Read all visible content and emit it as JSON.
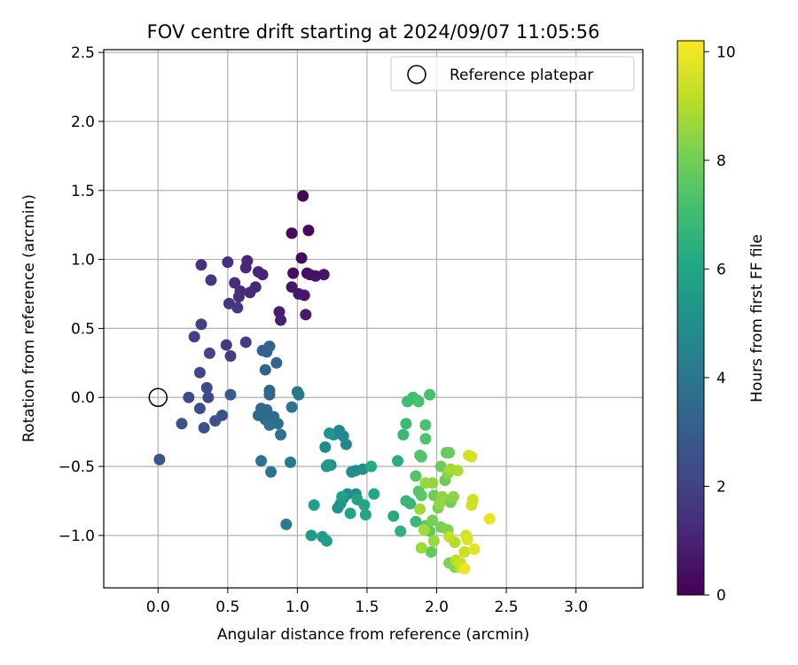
{
  "chart_data": {
    "type": "scatter",
    "title": "FOV centre drift starting at 2024/09/07 11:05:56",
    "xlabel": "Angular distance from reference (arcmin)",
    "ylabel": "Rotation from reference (arcmin)",
    "xlim": [
      -0.39,
      3.48
    ],
    "ylim": [
      -1.38,
      2.52
    ],
    "xticks": [
      "0.0",
      "0.5",
      "1.0",
      "1.5",
      "2.0",
      "2.5",
      "3.0"
    ],
    "yticks": [
      "−1.0",
      "−0.5",
      "0.0",
      "0.5",
      "1.0",
      "1.5",
      "2.0",
      "2.5"
    ],
    "grid": true,
    "legend": {
      "position": "upper-right",
      "entries": [
        "Reference platepar"
      ]
    },
    "colorbar": {
      "label": "Hours from first FF file",
      "range": [
        0,
        10.2
      ],
      "ticks": [
        "0",
        "2",
        "4",
        "6",
        "8",
        "10"
      ],
      "colormap": "viridis"
    },
    "reference_point": {
      "x": 0.0,
      "y": 0.0
    },
    "points": [
      [
        1.04,
        1.46,
        0.1
      ],
      [
        0.96,
        1.19,
        0.2
      ],
      [
        1.08,
        1.21,
        0.25
      ],
      [
        1.03,
        1.01,
        0.3
      ],
      [
        0.97,
        0.9,
        0.35
      ],
      [
        1.07,
        0.9,
        0.4
      ],
      [
        1.09,
        0.89,
        0.45
      ],
      [
        1.13,
        0.88,
        0.5
      ],
      [
        1.19,
        0.89,
        0.55
      ],
      [
        0.96,
        0.8,
        0.6
      ],
      [
        1.01,
        0.75,
        0.65
      ],
      [
        1.05,
        0.74,
        0.7
      ],
      [
        1.06,
        0.6,
        0.75
      ],
      [
        0.87,
        0.62,
        0.85
      ],
      [
        0.88,
        0.56,
        0.9
      ],
      [
        0.75,
        0.89,
        1.0
      ],
      [
        0.72,
        0.91,
        1.05
      ],
      [
        0.64,
        0.99,
        1.1
      ],
      [
        0.63,
        0.94,
        1.15
      ],
      [
        0.7,
        0.8,
        1.2
      ],
      [
        0.66,
        0.76,
        1.25
      ],
      [
        0.59,
        0.77,
        1.3
      ],
      [
        0.55,
        0.83,
        1.35
      ],
      [
        0.58,
        0.73,
        1.4
      ],
      [
        0.5,
        0.98,
        1.45
      ],
      [
        0.31,
        0.96,
        1.5
      ],
      [
        0.38,
        0.85,
        1.55
      ],
      [
        0.51,
        0.68,
        1.6
      ],
      [
        0.57,
        0.65,
        1.65
      ],
      [
        0.63,
        0.4,
        1.75
      ],
      [
        0.49,
        0.38,
        1.8
      ],
      [
        0.52,
        0.3,
        1.85
      ],
      [
        0.31,
        0.53,
        1.95
      ],
      [
        0.26,
        0.44,
        2.0
      ],
      [
        0.37,
        0.32,
        2.05
      ],
      [
        0.3,
        0.18,
        2.15
      ],
      [
        0.35,
        0.07,
        2.2
      ],
      [
        0.22,
        0.0,
        2.3
      ],
      [
        0.36,
        0.0,
        2.35
      ],
      [
        0.3,
        -0.08,
        2.4
      ],
      [
        0.46,
        -0.13,
        2.5
      ],
      [
        0.41,
        -0.17,
        2.55
      ],
      [
        0.17,
        -0.19,
        2.6
      ],
      [
        0.33,
        -0.22,
        2.65
      ],
      [
        0.01,
        -0.45,
        2.7
      ],
      [
        0.52,
        0.02,
        3.0
      ],
      [
        0.75,
        0.34,
        3.1
      ],
      [
        0.78,
        0.33,
        3.15
      ],
      [
        0.8,
        0.37,
        3.2
      ],
      [
        0.85,
        0.25,
        3.25
      ],
      [
        0.77,
        0.2,
        3.3
      ],
      [
        0.8,
        0.05,
        3.35
      ],
      [
        0.8,
        0.02,
        3.4
      ],
      [
        0.74,
        -0.08,
        3.45
      ],
      [
        0.78,
        -0.09,
        3.5
      ],
      [
        0.72,
        -0.13,
        3.55
      ],
      [
        0.77,
        -0.16,
        3.6
      ],
      [
        0.83,
        -0.14,
        3.65
      ],
      [
        0.86,
        -0.19,
        3.7
      ],
      [
        0.88,
        -0.27,
        3.75
      ],
      [
        0.8,
        -0.2,
        3.8
      ],
      [
        0.74,
        -0.46,
        3.85
      ],
      [
        0.81,
        -0.54,
        3.9
      ],
      [
        0.96,
        -0.07,
        3.95
      ],
      [
        1.0,
        0.04,
        4.0
      ],
      [
        1.01,
        0.02,
        4.05
      ],
      [
        0.95,
        -0.47,
        4.15
      ],
      [
        0.92,
        -0.92,
        4.25
      ],
      [
        1.3,
        -0.24,
        4.6
      ],
      [
        1.26,
        -0.27,
        4.65
      ],
      [
        1.33,
        -0.28,
        4.7
      ],
      [
        1.35,
        -0.34,
        4.75
      ],
      [
        1.2,
        -0.36,
        4.8
      ],
      [
        1.24,
        -0.49,
        4.85
      ],
      [
        1.21,
        -0.5,
        4.9
      ],
      [
        1.39,
        -0.54,
        4.95
      ],
      [
        1.42,
        -0.53,
        5.0
      ],
      [
        1.47,
        -0.52,
        5.05
      ],
      [
        1.42,
        -0.7,
        4.95
      ],
      [
        1.36,
        -0.7,
        5.0
      ],
      [
        1.33,
        -0.73,
        5.1
      ],
      [
        1.31,
        -0.77,
        5.15
      ],
      [
        1.29,
        -0.8,
        5.2
      ],
      [
        1.23,
        -0.26,
        5.3
      ],
      [
        1.22,
        -0.49,
        5.4
      ],
      [
        1.18,
        -1.01,
        5.5
      ],
      [
        1.1,
        -1.0,
        5.6
      ],
      [
        1.21,
        -1.04,
        5.65
      ],
      [
        1.12,
        -0.78,
        5.7
      ],
      [
        1.32,
        -0.72,
        5.75
      ],
      [
        1.43,
        -0.74,
        5.85
      ],
      [
        1.38,
        -0.84,
        5.9
      ],
      [
        1.49,
        -0.85,
        5.95
      ],
      [
        1.48,
        -0.78,
        6.05
      ],
      [
        1.55,
        -0.7,
        6.1
      ],
      [
        1.53,
        -0.5,
        6.15
      ],
      [
        1.69,
        -0.86,
        6.25
      ],
      [
        1.72,
        -0.46,
        6.4
      ],
      [
        1.74,
        -0.97,
        6.5
      ],
      [
        1.78,
        -0.75,
        6.7
      ],
      [
        1.81,
        -0.77,
        6.75
      ],
      [
        1.85,
        -0.9,
        6.8
      ],
      [
        1.76,
        -0.27,
        6.85
      ],
      [
        1.78,
        -0.19,
        6.9
      ],
      [
        1.79,
        -0.03,
        7.0
      ],
      [
        1.83,
        0.0,
        7.05
      ],
      [
        1.86,
        -0.02,
        7.1
      ],
      [
        1.87,
        -0.03,
        7.15
      ],
      [
        1.95,
        0.02,
        7.2
      ],
      [
        1.92,
        -0.2,
        7.25
      ],
      [
        1.92,
        -0.3,
        7.3
      ],
      [
        1.88,
        -0.42,
        7.35
      ],
      [
        1.89,
        -0.43,
        7.4
      ],
      [
        1.85,
        -0.57,
        7.45
      ],
      [
        1.87,
        -0.68,
        7.5
      ],
      [
        1.89,
        -0.71,
        7.55
      ],
      [
        1.92,
        -0.93,
        7.6
      ],
      [
        1.95,
        -0.97,
        7.65
      ],
      [
        1.96,
        -1.12,
        7.7
      ],
      [
        2.07,
        -0.4,
        7.75
      ],
      [
        2.09,
        -0.4,
        7.8
      ],
      [
        2.03,
        -0.5,
        7.85
      ],
      [
        2.06,
        -0.6,
        7.9
      ],
      [
        1.98,
        -0.71,
        7.95
      ],
      [
        2.1,
        -0.76,
        8.0
      ],
      [
        2.01,
        -0.8,
        8.05
      ],
      [
        1.97,
        -0.89,
        8.1
      ],
      [
        2.03,
        -0.94,
        8.15
      ],
      [
        2.08,
        -0.96,
        8.2
      ],
      [
        2.09,
        -1.2,
        8.25
      ],
      [
        2.13,
        -1.23,
        8.3
      ],
      [
        2.08,
        -0.55,
        8.35
      ],
      [
        2.12,
        -0.72,
        8.4
      ],
      [
        2.04,
        -0.72,
        8.45
      ],
      [
        1.97,
        -0.62,
        8.5
      ],
      [
        2.02,
        -0.77,
        8.55
      ],
      [
        1.92,
        -0.62,
        8.6
      ],
      [
        1.98,
        -1.04,
        8.65
      ],
      [
        1.89,
        -1.09,
        8.7
      ],
      [
        1.88,
        -0.81,
        8.75
      ],
      [
        1.91,
        -0.96,
        8.8
      ],
      [
        2.1,
        -0.52,
        8.85
      ],
      [
        2.15,
        -0.53,
        8.9
      ],
      [
        2.13,
        -1.05,
        9.0
      ],
      [
        2.14,
        -1.18,
        9.1
      ],
      [
        2.17,
        -1.23,
        9.2
      ],
      [
        2.09,
        -1.01,
        9.25
      ],
      [
        2.17,
        -1.2,
        9.3
      ],
      [
        2.2,
        -1.12,
        9.35
      ],
      [
        2.25,
        -0.78,
        9.4
      ],
      [
        2.26,
        -0.74,
        9.45
      ],
      [
        2.23,
        -0.42,
        9.5
      ],
      [
        2.25,
        -0.43,
        9.55
      ],
      [
        2.21,
        -1.0,
        9.6
      ],
      [
        2.22,
        -1.03,
        9.65
      ],
      [
        2.27,
        -1.1,
        9.75
      ],
      [
        2.38,
        -0.88,
        9.85
      ],
      [
        2.2,
        -1.24,
        9.95
      ]
    ]
  }
}
